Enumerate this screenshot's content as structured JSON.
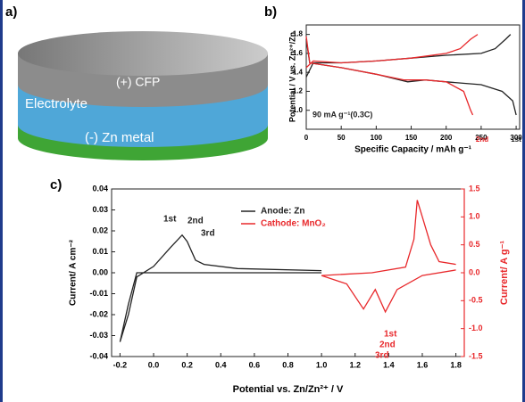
{
  "panel_labels": [
    "a)",
    "b)",
    "c)"
  ],
  "schematic": {
    "labels": [
      "(+) CFP",
      "Electrolyte",
      "(-) Zn metal"
    ]
  },
  "chart_data": [
    {
      "type": "line",
      "xlabel": "Specific Capacity / mAh g⁻¹",
      "ylabel": "Potential / V vs. Zn²⁺/Zn",
      "annotations": [
        "90 mA g⁻¹(0.3C)"
      ],
      "xlim": [
        0,
        305
      ],
      "xticks": [
        0,
        50,
        100,
        150,
        200,
        250,
        300
      ],
      "ylim": [
        0.8,
        1.9
      ],
      "yticks": [
        {
          "value": 1,
          "label": "1.0"
        },
        1.2,
        1.4,
        1.6,
        1.8
      ],
      "series": [
        {
          "name": "1st",
          "color": "#222222",
          "x": [
            0,
            5,
            50,
            100,
            145,
            170,
            200,
            250,
            280,
            295,
            300,
            null,
            0,
            10,
            50,
            100,
            150,
            200,
            250,
            270,
            285,
            292
          ],
          "values": [
            1.75,
            1.5,
            1.45,
            1.38,
            1.3,
            1.32,
            1.3,
            1.27,
            1.2,
            1.1,
            0.95,
            null,
            1.35,
            1.5,
            1.5,
            1.52,
            1.55,
            1.58,
            1.6,
            1.65,
            1.75,
            1.8
          ]
        },
        {
          "name": "2nd",
          "color": "#e8282b",
          "x": [
            0,
            5,
            50,
            100,
            140,
            170,
            200,
            225,
            235,
            238,
            null,
            0,
            10,
            50,
            100,
            150,
            200,
            220,
            235,
            245
          ],
          "values": [
            1.78,
            1.5,
            1.45,
            1.38,
            1.32,
            1.32,
            1.3,
            1.2,
            1.0,
            0.95,
            null,
            1.45,
            1.52,
            1.5,
            1.52,
            1.55,
            1.6,
            1.65,
            1.75,
            1.8
          ]
        }
      ]
    },
    {
      "type": "line",
      "xlabel": "Potential vs. Zn/Zn²⁺ / V",
      "ylabel": "Current/ A cm⁻²",
      "y2label": "Current/ A g⁻¹",
      "annotations": [
        "1st",
        "2nd",
        "3rd",
        "1st",
        "2nd",
        "3rd"
      ],
      "xlim": [
        -0.25,
        1.85
      ],
      "xticks": [
        -0.2,
        {
          "value": 0,
          "label": "0.0"
        },
        0.2,
        0.4,
        0.6,
        0.8,
        {
          "value": 1,
          "label": "1.0"
        },
        1.2,
        1.4,
        1.6,
        1.8
      ],
      "ylim": [
        -0.04,
        0.04
      ],
      "yticks": [
        -0.04,
        -0.03,
        -0.02,
        -0.01,
        {
          "value": 0,
          "label": "0.00"
        },
        0.01,
        0.02,
        0.03,
        0.04
      ],
      "y2lim": [
        -1.5,
        1.5
      ],
      "y2ticks": [
        -1.5,
        {
          "value": -1,
          "label": "-1.0"
        },
        -0.5,
        {
          "value": 0,
          "label": "0.0"
        },
        0.5,
        {
          "value": 1,
          "label": "1.0"
        },
        1.5
      ],
      "series": [
        {
          "name": "Anode: Zn",
          "color": "#222222",
          "x": [
            1.0,
            0.5,
            0.0,
            -0.1,
            -0.15,
            -0.2,
            -0.15,
            -0.1,
            0.0,
            0.1,
            0.17,
            0.2,
            0.25,
            0.3,
            0.5,
            1.0
          ],
          "values": [
            0.0,
            0.0,
            0.0,
            0.0,
            -0.015,
            -0.033,
            -0.02,
            -0.002,
            0.003,
            0.012,
            0.018,
            0.015,
            0.006,
            0.004,
            0.002,
            0.001
          ]
        },
        {
          "name": "Cathode: MnO₂",
          "color": "#e8282b",
          "axis": "y2",
          "x": [
            1.8,
            1.6,
            1.45,
            1.38,
            1.32,
            1.25,
            1.15,
            1.0,
            1.3,
            1.5,
            1.55,
            1.57,
            1.6,
            1.65,
            1.7,
            1.8
          ],
          "values": [
            0.05,
            -0.05,
            -0.3,
            -0.7,
            -0.3,
            -0.65,
            -0.2,
            -0.05,
            0.0,
            0.1,
            0.6,
            1.3,
            1.0,
            0.5,
            0.2,
            0.15
          ]
        }
      ]
    }
  ]
}
